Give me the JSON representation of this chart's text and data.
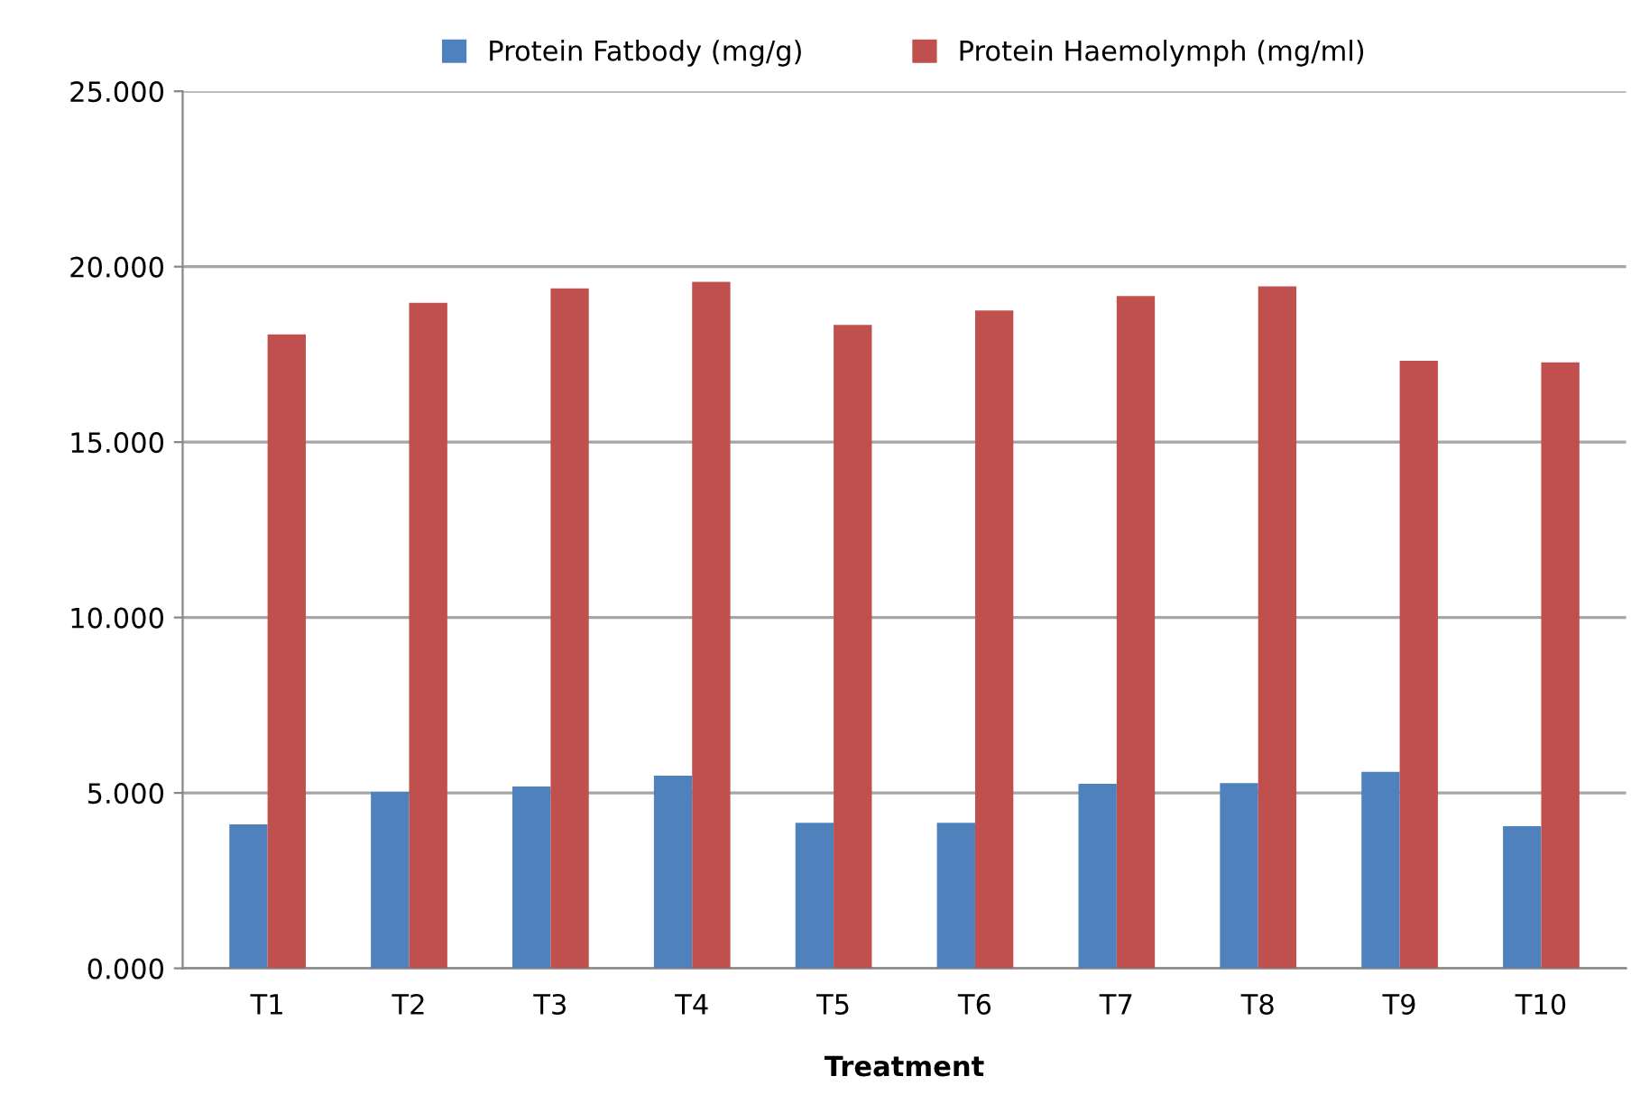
{
  "chart_data": {
    "type": "bar",
    "xlabel": "Treatment",
    "categories": [
      "T1",
      "T2",
      "T3",
      "T4",
      "T5",
      "T6",
      "T7",
      "T8",
      "T9",
      "T10"
    ],
    "series": [
      {
        "name": "Protein Fatbody (mg/g)",
        "color": "#4f81bd",
        "values": [
          4.1,
          5.03,
          5.18,
          5.49,
          4.15,
          4.15,
          5.26,
          5.28,
          5.6,
          4.05
        ]
      },
      {
        "name": "Protein Haemolymph (mg/ml)",
        "color": "#c0504d",
        "values": [
          18.07,
          18.97,
          19.38,
          19.57,
          18.34,
          18.75,
          19.16,
          19.44,
          17.32,
          17.27
        ]
      }
    ],
    "ylim": [
      0,
      25
    ],
    "yticks": [
      {
        "value": 0,
        "label": "0.000"
      },
      {
        "value": 5,
        "label": "5.000"
      },
      {
        "value": 10,
        "label": "10.000"
      },
      {
        "value": 15,
        "label": "15.000"
      },
      {
        "value": 20,
        "label": "20.000"
      },
      {
        "value": 25,
        "label": "25.000"
      }
    ],
    "grid": "y",
    "legend": "top"
  }
}
